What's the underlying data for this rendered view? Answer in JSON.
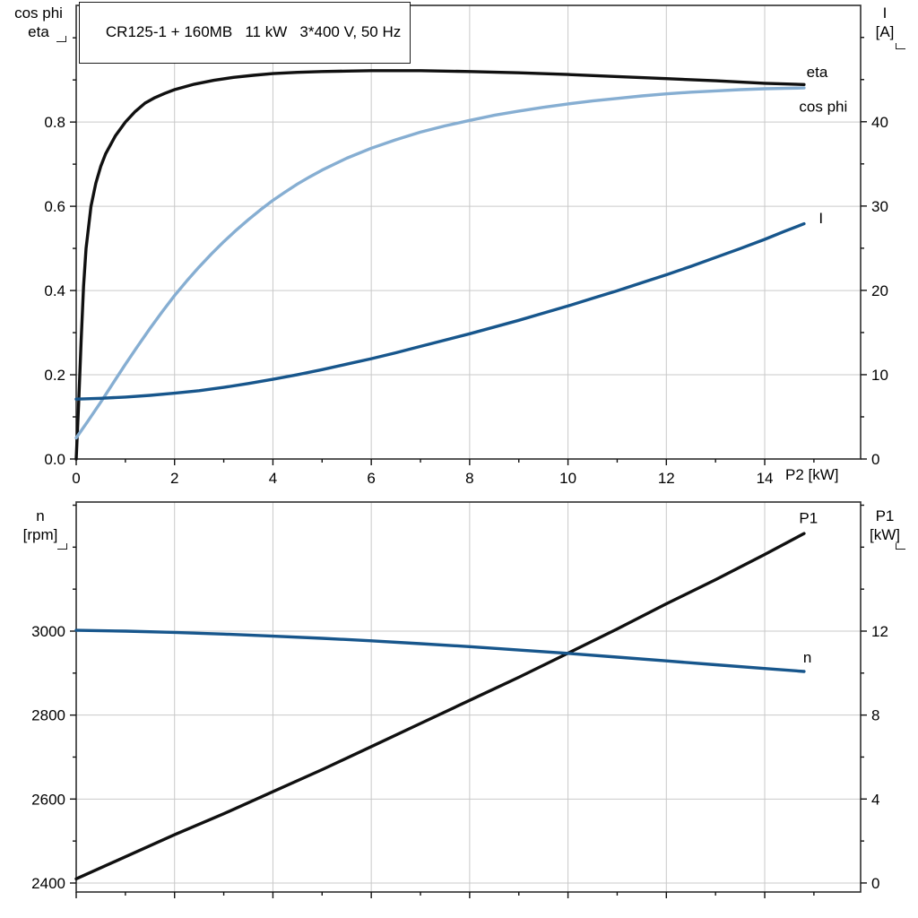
{
  "chart_data": [
    {
      "type": "line",
      "title": "CR125-1 + 160MB   11 kW   3*400 V, 50 Hz",
      "grid": true,
      "x_axis": {
        "label": "P2 [kW]",
        "min": 0,
        "max": 15.95,
        "ticks": [
          0,
          2,
          4,
          6,
          8,
          10,
          12,
          14
        ],
        "decimals": 0,
        "show_tick_labels": true
      },
      "left_axis": {
        "header": [
          "cos phi",
          "eta"
        ],
        "min": 0,
        "max": 1.077,
        "ticks": [
          0,
          0.2,
          0.4,
          0.6,
          0.8
        ],
        "decimals": 1
      },
      "right_axis": {
        "header": [
          "I",
          "[A]"
        ],
        "min": 0,
        "max": 53.8,
        "ticks": [
          0,
          10,
          20,
          30,
          40
        ],
        "decimals": 0
      },
      "series": [
        {
          "name": "eta",
          "axis": "left",
          "color": "#101010",
          "width": 3.4,
          "label": {
            "text": "eta",
            "x": 14.85,
            "y": 0.92
          },
          "points": [
            [
              0,
              0
            ],
            [
              0.05,
              0.13
            ],
            [
              0.1,
              0.28
            ],
            [
              0.15,
              0.41
            ],
            [
              0.2,
              0.5
            ],
            [
              0.3,
              0.6
            ],
            [
              0.4,
              0.655
            ],
            [
              0.5,
              0.695
            ],
            [
              0.6,
              0.725
            ],
            [
              0.8,
              0.768
            ],
            [
              1,
              0.8
            ],
            [
              1.2,
              0.825
            ],
            [
              1.4,
              0.845
            ],
            [
              1.6,
              0.858
            ],
            [
              1.8,
              0.868
            ],
            [
              2,
              0.877
            ],
            [
              2.4,
              0.89
            ],
            [
              2.8,
              0.899
            ],
            [
              3.2,
              0.906
            ],
            [
              3.6,
              0.911
            ],
            [
              4,
              0.915
            ],
            [
              4.5,
              0.918
            ],
            [
              5,
              0.92
            ],
            [
              5.5,
              0.921
            ],
            [
              6,
              0.922
            ],
            [
              7,
              0.922
            ],
            [
              8,
              0.92
            ],
            [
              9,
              0.917
            ],
            [
              10,
              0.913
            ],
            [
              11,
              0.908
            ],
            [
              12,
              0.903
            ],
            [
              13,
              0.898
            ],
            [
              14,
              0.892
            ],
            [
              14.8,
              0.889
            ]
          ]
        },
        {
          "name": "cos phi",
          "axis": "left",
          "color": "#86aed2",
          "width": 3.4,
          "label": {
            "text": "cos phi",
            "x": 14.7,
            "y": 0.838
          },
          "points": [
            [
              0,
              0.05
            ],
            [
              0.25,
              0.092
            ],
            [
              0.5,
              0.135
            ],
            [
              0.75,
              0.18
            ],
            [
              1,
              0.225
            ],
            [
              1.25,
              0.268
            ],
            [
              1.5,
              0.31
            ],
            [
              1.75,
              0.35
            ],
            [
              2,
              0.388
            ],
            [
              2.25,
              0.423
            ],
            [
              2.5,
              0.456
            ],
            [
              2.75,
              0.487
            ],
            [
              3,
              0.516
            ],
            [
              3.25,
              0.543
            ],
            [
              3.5,
              0.568
            ],
            [
              3.75,
              0.592
            ],
            [
              4,
              0.614
            ],
            [
              4.25,
              0.634
            ],
            [
              4.5,
              0.653
            ],
            [
              4.75,
              0.67
            ],
            [
              5,
              0.686
            ],
            [
              5.5,
              0.714
            ],
            [
              6,
              0.738
            ],
            [
              6.5,
              0.758
            ],
            [
              7,
              0.776
            ],
            [
              7.5,
              0.791
            ],
            [
              8,
              0.804
            ],
            [
              8.5,
              0.816
            ],
            [
              9,
              0.826
            ],
            [
              9.5,
              0.835
            ],
            [
              10,
              0.843
            ],
            [
              10.5,
              0.85
            ],
            [
              11,
              0.856
            ],
            [
              11.5,
              0.862
            ],
            [
              12,
              0.867
            ],
            [
              12.5,
              0.871
            ],
            [
              13,
              0.874
            ],
            [
              13.5,
              0.877
            ],
            [
              14,
              0.879
            ],
            [
              14.4,
              0.88
            ],
            [
              14.8,
              0.881
            ]
          ]
        },
        {
          "name": "I",
          "axis": "right",
          "color": "#17568c",
          "width": 3.4,
          "label": {
            "text": "I",
            "x": 15.1,
            "y": 28.6
          },
          "points": [
            [
              0,
              7.1
            ],
            [
              0.5,
              7.2
            ],
            [
              1,
              7.35
            ],
            [
              1.5,
              7.55
            ],
            [
              2,
              7.8
            ],
            [
              2.5,
              8.1
            ],
            [
              3,
              8.5
            ],
            [
              3.5,
              8.95
            ],
            [
              4,
              9.45
            ],
            [
              4.5,
              10
            ],
            [
              5,
              10.6
            ],
            [
              5.5,
              11.25
            ],
            [
              6,
              11.9
            ],
            [
              6.5,
              12.6
            ],
            [
              7,
              13.35
            ],
            [
              7.5,
              14.1
            ],
            [
              8,
              14.85
            ],
            [
              8.5,
              15.65
            ],
            [
              9,
              16.45
            ],
            [
              9.5,
              17.3
            ],
            [
              10,
              18.15
            ],
            [
              10.5,
              19.05
            ],
            [
              11,
              19.95
            ],
            [
              11.5,
              20.9
            ],
            [
              12,
              21.85
            ],
            [
              12.5,
              22.85
            ],
            [
              13,
              23.9
            ],
            [
              13.5,
              24.95
            ],
            [
              14,
              26.05
            ],
            [
              14.4,
              27
            ],
            [
              14.8,
              27.9
            ]
          ]
        }
      ]
    },
    {
      "type": "line",
      "grid": true,
      "x_axis": {
        "min": 0,
        "max": 15.95,
        "ticks": [
          0,
          2,
          4,
          6,
          8,
          10,
          12,
          14
        ],
        "decimals": 0,
        "show_tick_labels": false
      },
      "left_axis": {
        "header": [
          "n",
          "[rpm]"
        ],
        "min": 2378.6,
        "max": 3307.5,
        "ticks": [
          2400,
          2600,
          2800,
          3000
        ],
        "decimals": 0
      },
      "right_axis": {
        "header": [
          "P1",
          "[kW]"
        ],
        "min": -0.43,
        "max": 18.15,
        "ticks": [
          0,
          4,
          8,
          12
        ],
        "decimals": 0
      },
      "series": [
        {
          "name": "P1",
          "axis": "right",
          "color": "#101010",
          "width": 3.4,
          "label": {
            "text": "P1",
            "x": 14.7,
            "y": 17.4
          },
          "points": [
            [
              0,
              0.2
            ],
            [
              1,
              1.25
            ],
            [
              2,
              2.3
            ],
            [
              3,
              3.3
            ],
            [
              4,
              4.35
            ],
            [
              5,
              5.4
            ],
            [
              6,
              6.5
            ],
            [
              7,
              7.6
            ],
            [
              8,
              8.7
            ],
            [
              9,
              9.8
            ],
            [
              10,
              10.95
            ],
            [
              11,
              12.1
            ],
            [
              12,
              13.3
            ],
            [
              13,
              14.45
            ],
            [
              14,
              15.65
            ],
            [
              14.8,
              16.65
            ]
          ]
        },
        {
          "name": "n",
          "axis": "left",
          "color": "#17568c",
          "width": 3.4,
          "label": {
            "text": "n",
            "x": 14.78,
            "y": 2938
          },
          "points": [
            [
              0,
              3002
            ],
            [
              1,
              3000
            ],
            [
              2,
              2997
            ],
            [
              3,
              2993
            ],
            [
              4,
              2988
            ],
            [
              5,
              2983
            ],
            [
              6,
              2977
            ],
            [
              7,
              2970
            ],
            [
              8,
              2963
            ],
            [
              9,
              2955
            ],
            [
              10,
              2947
            ],
            [
              11,
              2938
            ],
            [
              12,
              2929
            ],
            [
              13,
              2920
            ],
            [
              14,
              2911
            ],
            [
              14.8,
              2904
            ]
          ]
        }
      ]
    }
  ]
}
